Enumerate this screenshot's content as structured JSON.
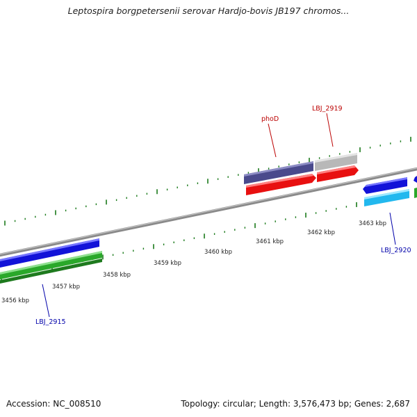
{
  "title": "Leptospira borgpetersenii serovar Hardjo-bovis JB197 chromos...",
  "footer": {
    "accession": "Accession: NC_008510",
    "summary": "Topology: circular; Length: 3,576,473 bp; Genes: 2,687"
  },
  "colors": {
    "backbone": "#8a8a8a",
    "tick": "#1a7a1a",
    "gene_blue": "#1212d8",
    "gene_green": "#2aa82a",
    "gene_navy": "#4a4a8c",
    "gene_grey": "#b8b8b8",
    "gene_red": "#e81010",
    "gene_cyan": "#22b8ee",
    "label_red": "#bb0000",
    "label_blue": "#0000aa"
  },
  "ticks": [
    {
      "label": "3456 kbp"
    },
    {
      "label": "3457 kbp"
    },
    {
      "label": "3458 kbp"
    },
    {
      "label": "3459 kbp"
    },
    {
      "label": "3460 kbp"
    },
    {
      "label": "3461 kbp"
    },
    {
      "label": "3462 kbp"
    },
    {
      "label": "3463 kbp"
    }
  ],
  "gene_labels": {
    "phoD": "phoD",
    "lbj2919": "LBJ_2919",
    "lbj2920": "LBJ_2920",
    "lbj2915": "LBJ_2915"
  }
}
